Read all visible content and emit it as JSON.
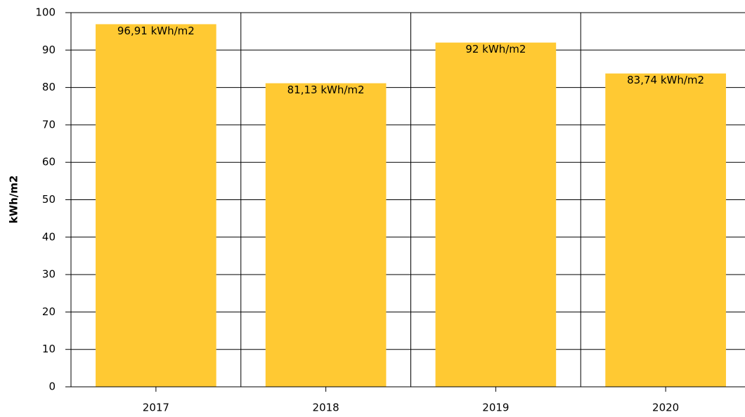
{
  "chart_data": {
    "type": "bar",
    "y_label": "kWh/m2",
    "categories": [
      "2017",
      "2018",
      "2019",
      "2020"
    ],
    "values": [
      96.91,
      81.13,
      92,
      83.74
    ],
    "value_labels": [
      "96,91 kWh/m2",
      "81,13 kWh/m2",
      "92 kWh/m2",
      "83,74 kWh/m2"
    ],
    "color": "#ffc933",
    "ylim": [
      0,
      100
    ],
    "yticks": [
      0,
      10,
      20,
      30,
      40,
      50,
      60,
      70,
      80,
      90,
      100
    ],
    "grid": true
  }
}
